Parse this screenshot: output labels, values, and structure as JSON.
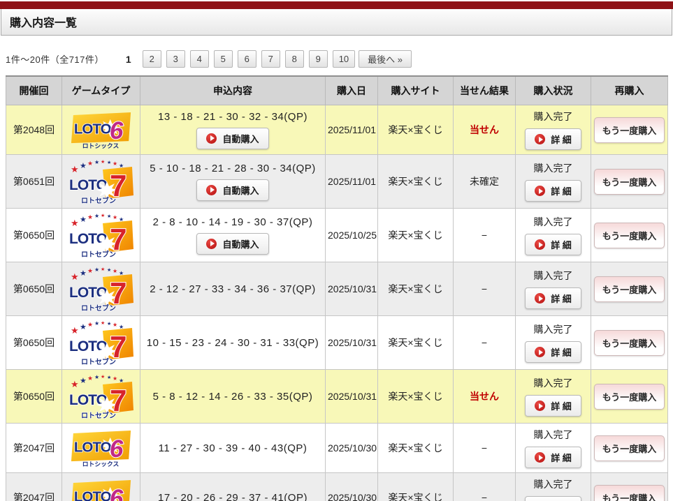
{
  "page_title": "購入内容一覧",
  "pagination": {
    "count_label": "1件〜20件（全717件）",
    "pages": [
      {
        "label": "1",
        "current": true
      },
      {
        "label": "2"
      },
      {
        "label": "3"
      },
      {
        "label": "4"
      },
      {
        "label": "5"
      },
      {
        "label": "6"
      },
      {
        "label": "7"
      },
      {
        "label": "8"
      },
      {
        "label": "9"
      },
      {
        "label": "10"
      }
    ],
    "last_label": "最後へ »"
  },
  "logos": {
    "loto6": {
      "word": "LOTO",
      "digit": "6",
      "subtitle": "ロトシックス"
    },
    "loto7": {
      "word": "LOTO",
      "digit": "7",
      "subtitle": "ロトセブン"
    }
  },
  "table": {
    "headers": [
      "開催回",
      "ゲームタイプ",
      "申込内容",
      "購入日",
      "購入サイト",
      "当せん結果",
      "購入状況",
      "再購入"
    ],
    "buttons": {
      "auto": "自動購入",
      "detail": "詳 細",
      "rebuy": "もう一度購入"
    },
    "rows": [
      {
        "round": "第2048回",
        "game": "loto6",
        "numbers": "13 - 18 - 21 - 30 - 32 - 34(QP)",
        "auto_button": true,
        "date": "2025/11/01",
        "site": "楽天×宝くじ",
        "result": "当せん",
        "result_win": true,
        "status": "購入完了",
        "highlight": "win"
      },
      {
        "round": "第0651回",
        "game": "loto7",
        "numbers": "5 - 10 - 18 - 21 - 28 - 30 - 34(QP)",
        "auto_button": true,
        "date": "2025/11/01",
        "site": "楽天×宝くじ",
        "result": "未確定",
        "result_win": false,
        "status": "購入完了",
        "highlight": "alt"
      },
      {
        "round": "第0650回",
        "game": "loto7",
        "numbers": "2 - 8 - 10 - 14 - 19 - 30 - 37(QP)",
        "auto_button": true,
        "date": "2025/10/25",
        "site": "楽天×宝くじ",
        "result": "−",
        "result_win": false,
        "status": "購入完了",
        "highlight": "normal"
      },
      {
        "round": "第0650回",
        "game": "loto7",
        "numbers": "2 - 12 - 27 - 33 - 34 - 36 - 37(QP)",
        "auto_button": false,
        "date": "2025/10/31",
        "site": "楽天×宝くじ",
        "result": "−",
        "result_win": false,
        "status": "購入完了",
        "highlight": "alt"
      },
      {
        "round": "第0650回",
        "game": "loto7",
        "numbers": "10 - 15 - 23 - 24 - 30 - 31 - 33(QP)",
        "auto_button": false,
        "date": "2025/10/31",
        "site": "楽天×宝くじ",
        "result": "−",
        "result_win": false,
        "status": "購入完了",
        "highlight": "normal"
      },
      {
        "round": "第0650回",
        "game": "loto7",
        "numbers": "5 - 8 - 12 - 14 - 26 - 33 - 35(QP)",
        "auto_button": false,
        "date": "2025/10/31",
        "site": "楽天×宝くじ",
        "result": "当せん",
        "result_win": true,
        "status": "購入完了",
        "highlight": "win"
      },
      {
        "round": "第2047回",
        "game": "loto6",
        "numbers": "11 - 27 - 30 - 39 - 40 - 43(QP)",
        "auto_button": false,
        "date": "2025/10/30",
        "site": "楽天×宝くじ",
        "result": "−",
        "result_win": false,
        "status": "購入完了",
        "highlight": "normal"
      },
      {
        "round": "第2047回",
        "game": "loto6",
        "numbers": "17 - 20 - 26 - 29 - 37 - 41(QP)",
        "auto_button": false,
        "date": "2025/10/30",
        "site": "楽天×宝くじ",
        "result": "−",
        "result_win": false,
        "status": "購入完了",
        "highlight": "alt"
      }
    ]
  },
  "colors": {
    "accent_red": "#8e1216",
    "highlight_yellow": "#f8f8b8",
    "win_text_red": "#c00000",
    "header_gray": "#d5d5d5"
  }
}
